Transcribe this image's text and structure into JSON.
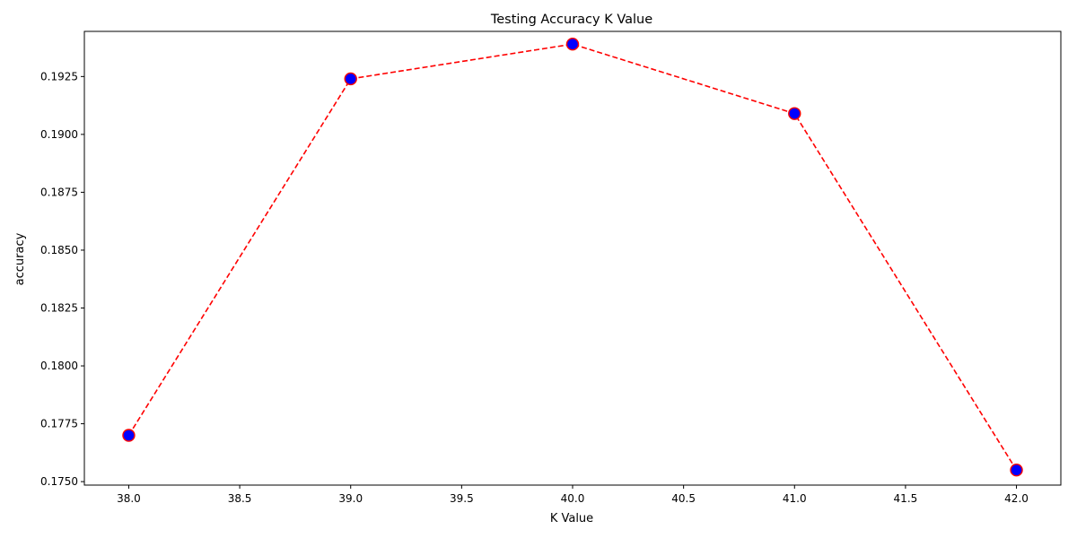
{
  "chart_data": {
    "type": "line",
    "title": "Testing Accuracy K Value",
    "xlabel": "K Value",
    "ylabel": "accuracy",
    "xlim": [
      37.8,
      42.2
    ],
    "ylim": [
      0.17485,
      0.19445
    ],
    "xticks": [
      38.0,
      38.5,
      39.0,
      39.5,
      40.0,
      40.5,
      41.0,
      41.5,
      42.0
    ],
    "xtick_labels": [
      "38.0",
      "38.5",
      "39.0",
      "39.5",
      "40.0",
      "40.5",
      "41.0",
      "41.5",
      "42.0"
    ],
    "yticks": [
      0.175,
      0.1775,
      0.18,
      0.1825,
      0.185,
      0.1875,
      0.19,
      0.1925
    ],
    "ytick_labels": [
      "0.1750",
      "0.1775",
      "0.1800",
      "0.1825",
      "0.1850",
      "0.1875",
      "0.1900",
      "0.1925"
    ],
    "grid": false,
    "series": [
      {
        "x": [
          38,
          39,
          40,
          41,
          42
        ],
        "y": [
          0.177,
          0.1924,
          0.1939,
          0.1909,
          0.1755
        ],
        "line_color": "#ff0000",
        "line_style": "dashed",
        "marker_face_color": "#0000ff",
        "marker_edge_color": "#ff0000"
      }
    ]
  }
}
